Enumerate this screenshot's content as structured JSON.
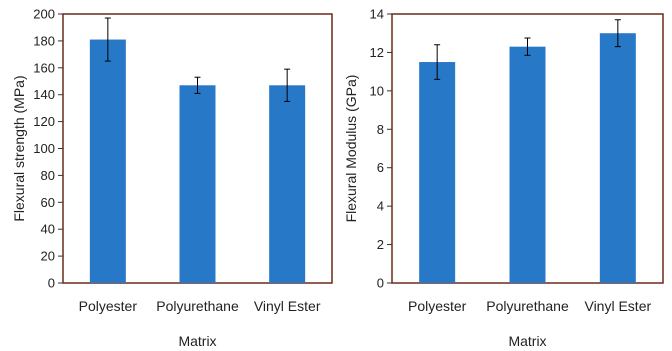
{
  "colors": {
    "bar": "#2878c8",
    "frame": "#6b2a1a",
    "error": "#000000",
    "text": "#222222"
  },
  "chart_data": [
    {
      "type": "bar",
      "categories": [
        "Polyester",
        "Polyurethane",
        "Vinyl Ester"
      ],
      "values": [
        181,
        147,
        147
      ],
      "errors": [
        16,
        6,
        12
      ],
      "xlabel": "Matrix",
      "ylabel": "Flexural strength (MPa)",
      "ylim": [
        0,
        200
      ],
      "yticks": [
        0,
        20,
        40,
        60,
        80,
        100,
        120,
        140,
        160,
        180,
        200
      ],
      "grid": false,
      "legend": "none"
    },
    {
      "type": "bar",
      "categories": [
        "Polyester",
        "Polyurethane",
        "Vinyl Ester"
      ],
      "values": [
        11.5,
        12.3,
        13.0
      ],
      "errors": [
        0.9,
        0.45,
        0.7
      ],
      "xlabel": "Matrix",
      "ylabel": "Flexural Modulus (GPa)",
      "ylim": [
        0,
        14
      ],
      "yticks": [
        0,
        2,
        4,
        6,
        8,
        10,
        12,
        14
      ],
      "grid": false,
      "legend": "none"
    }
  ]
}
